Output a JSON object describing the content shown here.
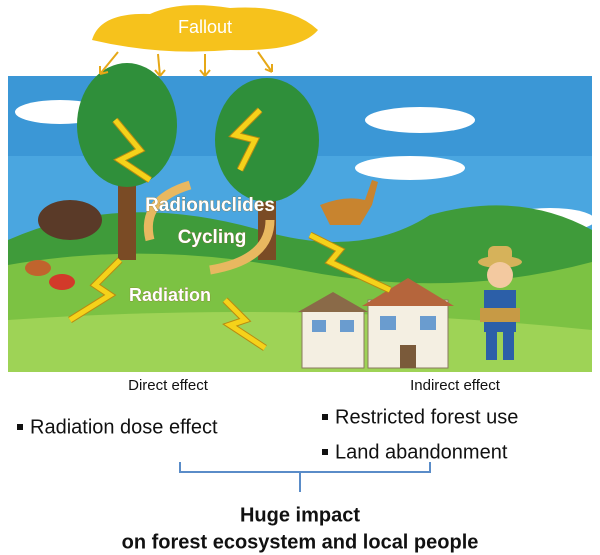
{
  "illustration": {
    "cloud_label": "Fallout",
    "cycle_label": [
      "Radionuclides",
      "Cycling"
    ],
    "radiation_label": "Radiation"
  },
  "effects": {
    "direct": {
      "heading": "Direct effect",
      "items": [
        "Radiation dose effect"
      ]
    },
    "indirect": {
      "heading": "Indirect effect",
      "items": [
        "Restricted forest use",
        "Land abandonment"
      ]
    }
  },
  "conclusion": [
    "Huge impact",
    "on forest ecosystem and local people"
  ]
}
